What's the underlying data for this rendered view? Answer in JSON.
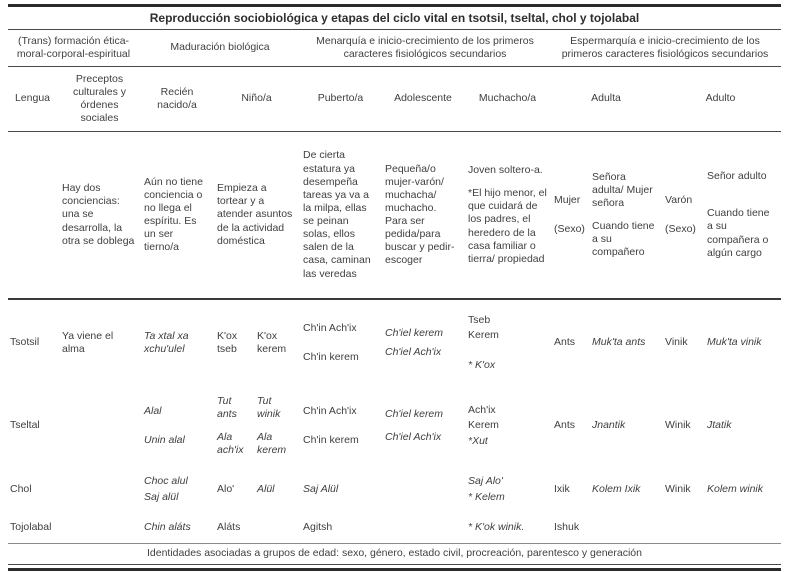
{
  "title": "Reproducción sociobiológica y etapas del ciclo vital en tsotsil, tseltal, chol y tojolabal",
  "group_headers": {
    "g1": "(Trans) formación ética-moral-corporal-espiritual",
    "g2": "Maduración biológica",
    "g3": "Menarquía e inicio-crecimiento de los primeros caracteres fisiológicos secundarios",
    "g4": "Espermarquía e inicio-crecimiento de los primeros caracteres fisiológicos secundarios"
  },
  "column_headers": {
    "lengua": "Lengua",
    "preceptos": "Preceptos culturales y órdenes sociales",
    "recien": "Recién nacido/a",
    "nino": "Niño/a",
    "puberto": "Puberto/a",
    "adolescente": "Adolescente",
    "muchacho": "Muchacho/a",
    "adulta": "Adulta",
    "adulto": "Adulto"
  },
  "description_row": {
    "preceptos": "Hay dos conciencias: una se desarrolla, la otra se doblega",
    "recien": "Aún no tiene conciencia o no llega el espíritu. Es un ser tierno/a",
    "nino": "Empieza a tortear y a atender asuntos de la actividad doméstica",
    "puberto": "De cierta estatura ya desempeña tareas ya va a la milpa, ellas se peinan solas, ellos salen de la casa, caminan las veredas",
    "adolescente": "Pequeña/o mujer-varón/ muchacha/ muchacho. Para ser pedida/para buscar y pedir-escoger",
    "muchacho_p1": "Joven soltero-a.",
    "muchacho_p2": "*El hijo menor, el que cuidará de los padres, el heredero de la casa familiar o tierra/ propiedad",
    "adulta_sexo_p1": "Mujer",
    "adulta_sexo_p2": "(Sexo)",
    "adulta_p1": "Señora adulta/ Mujer señora",
    "adulta_p2": "Cuando tiene a su compañero",
    "adulto_sexo_p1": "Varón",
    "adulto_sexo_p2": "(Sexo)",
    "adulto_p1": "Señor adulto",
    "adulto_p2": "Cuando tiene a su compañera o algún cargo"
  },
  "rows": {
    "tsotsil": {
      "lengua": "Tsotsil",
      "preceptos": "Ya viene el alma",
      "recien": "Ta xtal xa xchu'ulel",
      "nino_f": "K'ox tseb",
      "nino_m": "K'ox kerem",
      "puberto_p1": "Ch'in Ach'ix",
      "puberto_p2": "Ch'in kerem",
      "adolescente_p1": "Ch'iel kerem",
      "adolescente_p2": "Ch'iel Ach'ix",
      "muchacho_p1": "Tseb",
      "muchacho_p2": "Kerem",
      "muchacho_p3": "* K'ox",
      "adulta_sexo": "Ants",
      "adulta": "Muk'ta ants",
      "adulto_sexo": "Vinik",
      "adulto": "Muk'ta vinik"
    },
    "tseltal": {
      "lengua": "Tseltal",
      "recien_p1": "Alal",
      "recien_p2": "Unin alal",
      "nino_f_p1": "Tut ants",
      "nino_f_p2": "Ala ach'ix",
      "nino_m_p1": "Tut winik",
      "nino_m_p2": "Ala kerem",
      "puberto_p1": "Ch'in Ach'ix",
      "puberto_p2": "Ch'in kerem",
      "adolescente_p1": "Ch'iel kerem",
      "adolescente_p2": "Ch'iel Ach'ix",
      "muchacho_p1": "Ach'ix",
      "muchacho_p2": "Kerem",
      "muchacho_p3": "*Xut",
      "adulta_sexo": "Ants",
      "adulta": "Jnantik",
      "adulto_sexo": "Winik",
      "adulto": "Jtatik"
    },
    "chol": {
      "lengua": "Chol",
      "recien_p1": "Choc alul",
      "recien_p2": "Saj alül",
      "nino_f": "Alo'",
      "nino_m": "Alül",
      "puberto": "Saj Alül",
      "muchacho_p1": "Saj Alo'",
      "muchacho_p2": "* Kelem",
      "adulta_sexo": "Ixik",
      "adulta": "Kolem Ixik",
      "adulto_sexo": "Winik",
      "adulto": "Kolem winik"
    },
    "tojolabal": {
      "lengua": "Tojolabal",
      "recien": "Chin aláts",
      "nino_f": "Aláts",
      "puberto": "Agitsh",
      "muchacho": "* K'ok winik.",
      "adulta_sexo": "Ishuk"
    }
  },
  "footer": "Identidades asociadas a grupos de edad: sexo, género, estado civil, procreación, parentesco y generación",
  "colors": {
    "text": "#3f3f3f",
    "rule_dark": "#2b2b2b",
    "rule_mid": "#4a4a4a"
  }
}
